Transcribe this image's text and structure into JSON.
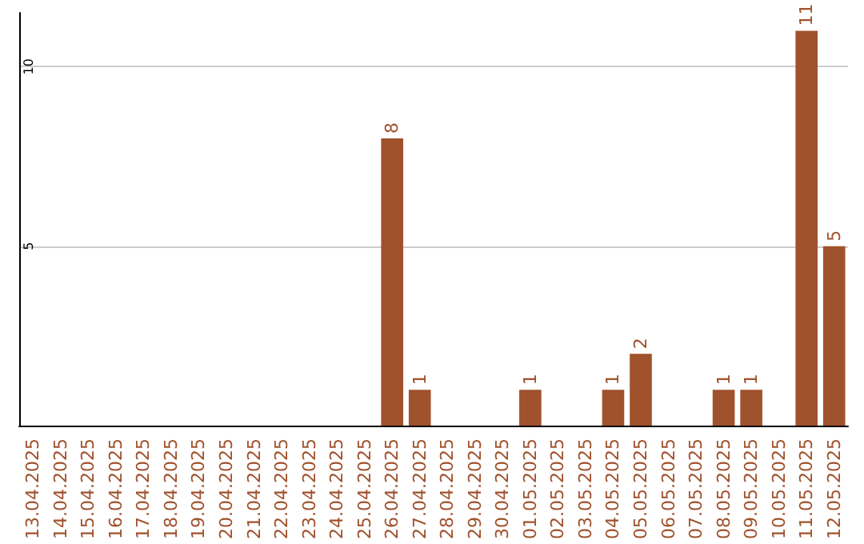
{
  "chart_data": {
    "type": "bar",
    "categories": [
      "13.04.2025",
      "14.04.2025",
      "15.04.2025",
      "16.04.2025",
      "17.04.2025",
      "18.04.2025",
      "19.04.2025",
      "20.04.2025",
      "21.04.2025",
      "22.04.2025",
      "23.04.2025",
      "24.04.2025",
      "25.04.2025",
      "26.04.2025",
      "27.04.2025",
      "28.04.2025",
      "29.04.2025",
      "30.04.2025",
      "01.05.2025",
      "02.05.2025",
      "03.05.2025",
      "04.05.2025",
      "05.05.2025",
      "06.05.2025",
      "07.05.2025",
      "08.05.2025",
      "09.05.2025",
      "10.05.2025",
      "11.05.2025",
      "12.05.2025"
    ],
    "values": [
      0,
      0,
      0,
      0,
      0,
      0,
      0,
      0,
      0,
      0,
      0,
      0,
      0,
      8,
      1,
      0,
      0,
      0,
      1,
      0,
      0,
      1,
      2,
      0,
      0,
      1,
      1,
      0,
      11,
      5
    ],
    "value_labels": [
      null,
      null,
      null,
      null,
      null,
      null,
      null,
      null,
      null,
      null,
      null,
      null,
      null,
      "8",
      "1",
      null,
      null,
      null,
      "1",
      null,
      null,
      "1",
      "2",
      null,
      null,
      "1",
      "1",
      null,
      "11",
      "5"
    ],
    "color": "#a0522d",
    "ylim": [
      0,
      11.5
    ],
    "yticks": [
      5,
      10
    ],
    "grid": "y"
  }
}
